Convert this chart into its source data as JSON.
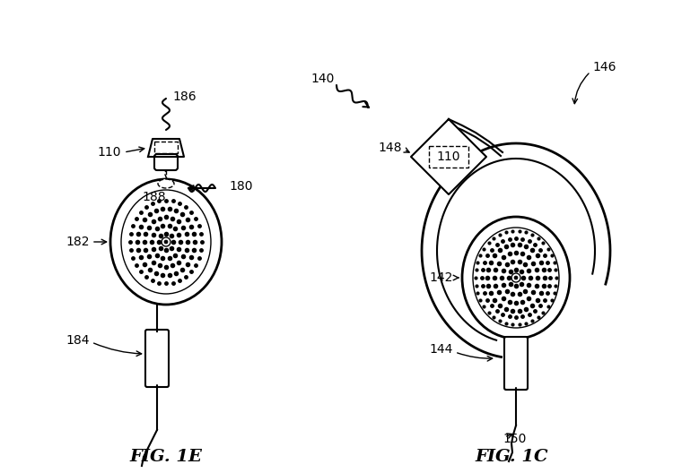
{
  "bg_color": "#ffffff",
  "line_color": "#000000",
  "title_1e": "FIG. 1E",
  "title_1c": "FIG. 1C",
  "labels": {
    "110_left": "110",
    "180": "180",
    "182": "182",
    "184": "184",
    "186": "186",
    "188": "188",
    "140": "140",
    "142": "142",
    "144": "144",
    "146": "146",
    "148": "148",
    "150": "150",
    "110_right": "110"
  },
  "fig_width": 7.5,
  "fig_height": 5.28,
  "dpi": 100
}
